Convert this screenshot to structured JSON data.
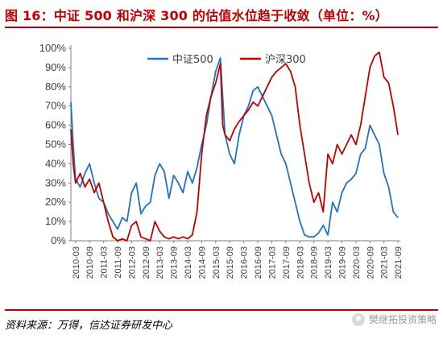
{
  "title": "图 16：中证 500 和沪深 300 的估值水位趋于收敛（单位：%）",
  "source": "资料来源：万得，信达证券研发中心",
  "watermark": "樊继拓投资策略",
  "chart_data": {
    "type": "line",
    "title": "图 16：中证 500 和沪深 300 的估值水位趋于收敛（单位：%）",
    "xlabel": "",
    "ylabel": "",
    "ylim": [
      0,
      100
    ],
    "yticks": [
      "0%",
      "10%",
      "20%",
      "30%",
      "40%",
      "50%",
      "60%",
      "70%",
      "80%",
      "90%",
      "100%"
    ],
    "xticks": [
      "2010-03",
      "2010-09",
      "2011-03",
      "2011-09",
      "2012-03",
      "2012-09",
      "2013-03",
      "2013-09",
      "2014-03",
      "2014-09",
      "2015-03",
      "2015-09",
      "2016-03",
      "2016-09",
      "2017-03",
      "2017-09",
      "2018-03",
      "2018-09",
      "2019-03",
      "2019-09",
      "2020-03",
      "2020-09",
      "2021-03",
      "2021-09"
    ],
    "xlim": [
      "2010-01",
      "2021-10"
    ],
    "grid": false,
    "legend_position": "top-center",
    "series": [
      {
        "name": "中证500",
        "color": "#1f72c4",
        "x": [
          "2010-01",
          "2010-02",
          "2010-03",
          "2010-05",
          "2010-07",
          "2010-09",
          "2010-11",
          "2011-01",
          "2011-03",
          "2011-05",
          "2011-07",
          "2011-09",
          "2011-11",
          "2012-01",
          "2012-03",
          "2012-05",
          "2012-07",
          "2012-09",
          "2012-11",
          "2013-01",
          "2013-03",
          "2013-05",
          "2013-07",
          "2013-09",
          "2013-11",
          "2014-01",
          "2014-03",
          "2014-05",
          "2014-07",
          "2014-09",
          "2014-11",
          "2015-01",
          "2015-03",
          "2015-05",
          "2015-06",
          "2015-07",
          "2015-09",
          "2015-11",
          "2016-01",
          "2016-03",
          "2016-05",
          "2016-07",
          "2016-09",
          "2016-11",
          "2017-01",
          "2017-03",
          "2017-05",
          "2017-07",
          "2017-09",
          "2017-11",
          "2018-01",
          "2018-03",
          "2018-05",
          "2018-07",
          "2018-09",
          "2018-11",
          "2019-01",
          "2019-03",
          "2019-05",
          "2019-07",
          "2019-09",
          "2019-11",
          "2020-01",
          "2020-03",
          "2020-05",
          "2020-07",
          "2020-09",
          "2020-11",
          "2021-01",
          "2021-03",
          "2021-05",
          "2021-07",
          "2021-09"
        ],
        "values": [
          72,
          50,
          32,
          28,
          35,
          40,
          30,
          22,
          20,
          14,
          10,
          6,
          12,
          10,
          25,
          30,
          14,
          18,
          20,
          34,
          40,
          36,
          22,
          34,
          30,
          25,
          36,
          30,
          38,
          50,
          60,
          75,
          88,
          95,
          75,
          55,
          45,
          40,
          55,
          65,
          70,
          78,
          80,
          75,
          70,
          65,
          55,
          45,
          40,
          30,
          20,
          10,
          3,
          2,
          2,
          4,
          8,
          3,
          20,
          15,
          25,
          30,
          32,
          35,
          45,
          48,
          60,
          55,
          50,
          35,
          28,
          15,
          12
        ]
      },
      {
        "name": "沪深300",
        "color": "#c00000",
        "x": [
          "2010-01",
          "2010-02",
          "2010-03",
          "2010-05",
          "2010-07",
          "2010-09",
          "2010-11",
          "2011-01",
          "2011-03",
          "2011-05",
          "2011-07",
          "2011-09",
          "2011-11",
          "2012-01",
          "2012-03",
          "2012-05",
          "2012-07",
          "2012-09",
          "2012-11",
          "2013-01",
          "2013-03",
          "2013-05",
          "2013-07",
          "2013-09",
          "2013-11",
          "2014-01",
          "2014-03",
          "2014-05",
          "2014-07",
          "2014-09",
          "2014-11",
          "2015-01",
          "2015-03",
          "2015-05",
          "2015-06",
          "2015-07",
          "2015-09",
          "2015-11",
          "2016-01",
          "2016-03",
          "2016-05",
          "2016-07",
          "2016-09",
          "2016-11",
          "2017-01",
          "2017-03",
          "2017-05",
          "2017-07",
          "2017-09",
          "2017-11",
          "2018-01",
          "2018-03",
          "2018-05",
          "2018-07",
          "2018-09",
          "2018-11",
          "2019-01",
          "2019-03",
          "2019-05",
          "2019-07",
          "2019-09",
          "2019-11",
          "2020-01",
          "2020-03",
          "2020-05",
          "2020-07",
          "2020-09",
          "2020-11",
          "2021-01",
          "2021-03",
          "2021-05",
          "2021-07",
          "2021-09"
        ],
        "values": [
          58,
          40,
          30,
          35,
          28,
          32,
          25,
          30,
          20,
          10,
          2,
          0,
          1,
          0,
          8,
          10,
          2,
          1,
          0,
          10,
          5,
          2,
          1,
          2,
          1,
          2,
          1,
          3,
          15,
          45,
          65,
          75,
          82,
          92,
          60,
          55,
          52,
          58,
          62,
          65,
          68,
          72,
          70,
          75,
          80,
          85,
          88,
          90,
          92,
          88,
          80,
          60,
          45,
          30,
          20,
          25,
          15,
          45,
          40,
          50,
          45,
          50,
          55,
          50,
          60,
          75,
          90,
          96,
          98,
          85,
          82,
          70,
          55
        ]
      }
    ]
  }
}
